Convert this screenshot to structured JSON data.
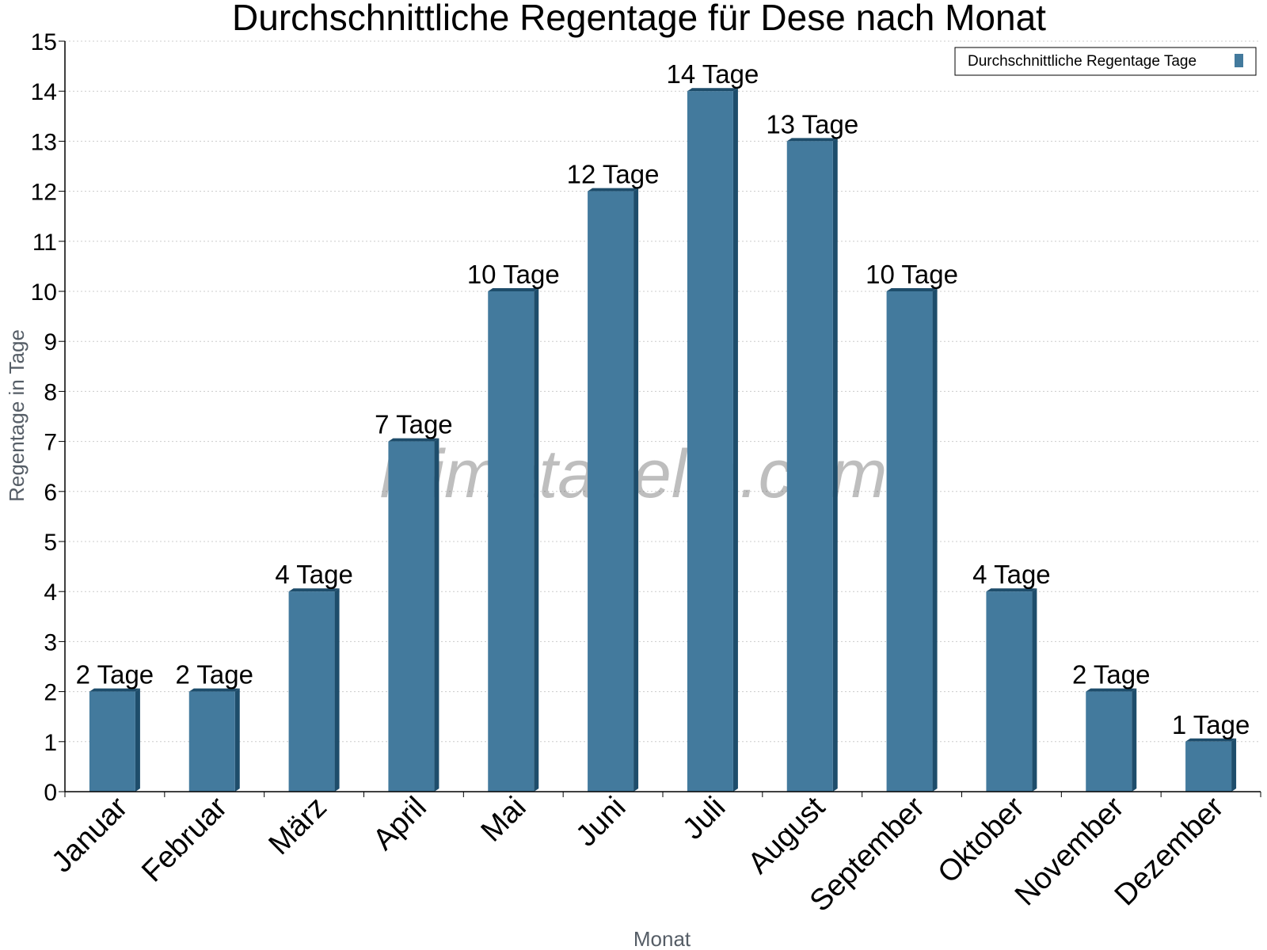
{
  "chart_data": {
    "type": "bar",
    "title": "Durchschnittliche Regentage für Dese nach Monat",
    "xlabel": "Monat",
    "ylabel": "Regentage in Tage",
    "categories": [
      "Januar",
      "Februar",
      "März",
      "April",
      "Mai",
      "Juni",
      "Juli",
      "August",
      "September",
      "Oktober",
      "November",
      "Dezember"
    ],
    "series": [
      {
        "name": "Durchschnittliche Regentage Tage",
        "values": [
          2,
          2,
          4,
          7,
          10,
          12,
          14,
          13,
          10,
          4,
          2,
          1
        ],
        "data_labels": [
          "2 Tage",
          "2 Tage",
          "4 Tage",
          "7 Tage",
          "10 Tage",
          "12 Tage",
          "14 Tage",
          "13 Tage",
          "10 Tage",
          "4 Tage",
          "2 Tage",
          "1 Tage"
        ]
      }
    ],
    "ylim": [
      0,
      15
    ],
    "yticks": [
      "0",
      "1",
      "2",
      "3",
      "4",
      "5",
      "6",
      "7",
      "8",
      "9",
      "10",
      "11",
      "12",
      "13",
      "14",
      "15"
    ],
    "grid": true,
    "legend_position": "top-right",
    "watermark": "klimatabelle.com",
    "colors": {
      "bar": "#437a9d",
      "bar_dark": "#1e4d6b",
      "grid": "#cccccc",
      "axis": "#000000"
    }
  }
}
